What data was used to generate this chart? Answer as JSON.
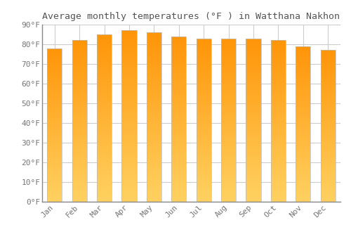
{
  "months": [
    "Jan",
    "Feb",
    "Mar",
    "Apr",
    "May",
    "Jun",
    "Jul",
    "Aug",
    "Sep",
    "Oct",
    "Nov",
    "Dec"
  ],
  "values": [
    78,
    82,
    85,
    87,
    86,
    84,
    83,
    83,
    83,
    82,
    79,
    77
  ],
  "title": "Average monthly temperatures (°F ) in Watthana Nakhon",
  "ylim": [
    0,
    90
  ],
  "yticks": [
    0,
    10,
    20,
    30,
    40,
    50,
    60,
    70,
    80,
    90
  ],
  "ylabel_format": "°F",
  "background_color": "#FFFFFF",
  "plot_bg_color": "#FFFFFF",
  "grid_color": "#CCCCCC",
  "title_fontsize": 9.5,
  "tick_fontsize": 8,
  "bar_color_bottom": "#FFD060",
  "bar_color_top": "#FFA010",
  "bar_edge_color": "#BBBBBB",
  "bar_edge_width": 0.5,
  "bar_width": 0.6
}
